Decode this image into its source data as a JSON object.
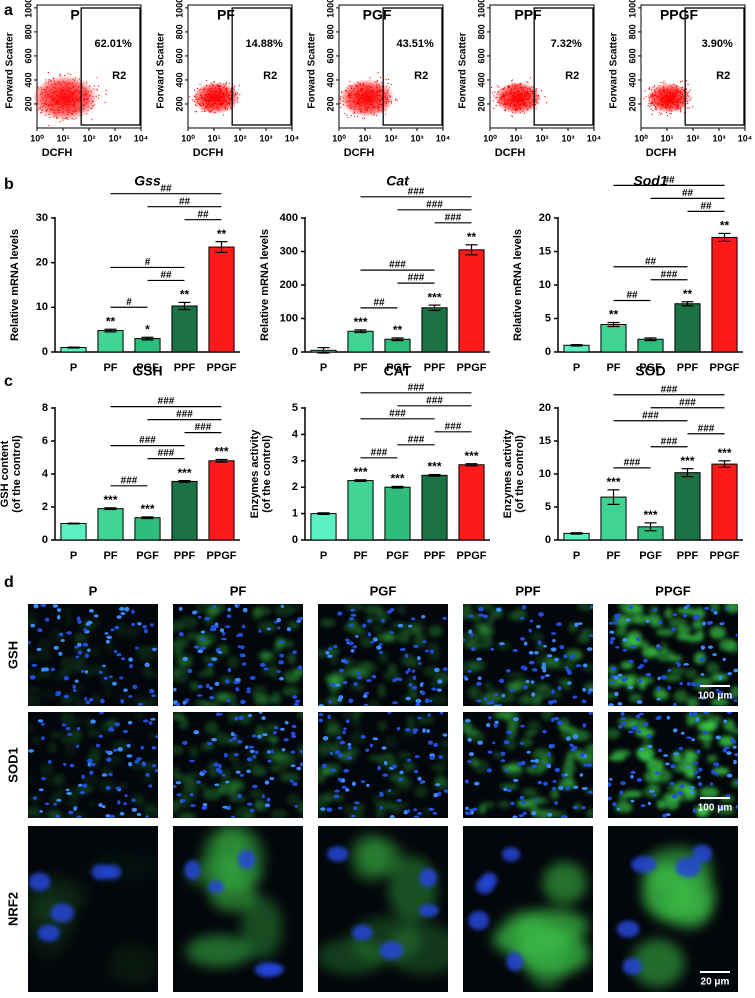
{
  "panel_labels": [
    "a",
    "b",
    "c",
    "d"
  ],
  "chart_data": [
    {
      "type": "flow",
      "title": "P",
      "gate_label": "R2",
      "gate_percent": "62.01%",
      "xlabel": "DCFH",
      "ylabel": "Forward Scatter",
      "xscale": "log",
      "color": "#ff0000",
      "xlim": [
        1,
        10000
      ],
      "xticks": [
        {
          "value": 1,
          "label": "10⁰"
        },
        {
          "value": 10,
          "label": "10¹"
        },
        {
          "value": 100,
          "label": "10²"
        },
        {
          "value": 1000,
          "label": "10³"
        },
        {
          "value": 10000,
          "label": "10⁴"
        }
      ],
      "ylim": [
        0,
        1024
      ],
      "yticks": [
        200,
        400,
        600,
        800,
        1000
      ]
    },
    {
      "type": "flow",
      "title": "PF",
      "gate_label": "R2",
      "gate_percent": "14.88%",
      "xlabel": "DCFH",
      "ylabel": "Forward Scatter",
      "xscale": "log",
      "color": "#ff0000",
      "xlim": [
        1,
        10000
      ],
      "xticks": [
        {
          "value": 1,
          "label": "10⁰"
        },
        {
          "value": 10,
          "label": "10¹"
        },
        {
          "value": 100,
          "label": "10²"
        },
        {
          "value": 1000,
          "label": "10³"
        },
        {
          "value": 10000,
          "label": "10⁴"
        }
      ],
      "ylim": [
        0,
        1024
      ],
      "yticks": [
        200,
        400,
        600,
        800,
        1000
      ]
    },
    {
      "type": "flow",
      "title": "PGF",
      "gate_label": "R2",
      "gate_percent": "43.51%",
      "xlabel": "DCFH",
      "ylabel": "Forward Scatter",
      "xscale": "log",
      "color": "#ff0000",
      "xlim": [
        1,
        10000
      ],
      "xticks": [
        {
          "value": 1,
          "label": "10⁰"
        },
        {
          "value": 10,
          "label": "10¹"
        },
        {
          "value": 100,
          "label": "10²"
        },
        {
          "value": 1000,
          "label": "10³"
        },
        {
          "value": 10000,
          "label": "10⁴"
        }
      ],
      "ylim": [
        0,
        1024
      ],
      "yticks": [
        200,
        400,
        600,
        800,
        1000
      ]
    },
    {
      "type": "flow",
      "title": "PPF",
      "gate_label": "R2",
      "gate_percent": "7.32%",
      "xlabel": "DCFH",
      "ylabel": "Forward Scatter",
      "xscale": "log",
      "color": "#ff0000",
      "xlim": [
        1,
        10000
      ],
      "xticks": [
        {
          "value": 1,
          "label": "10⁰"
        },
        {
          "value": 10,
          "label": "10¹"
        },
        {
          "value": 100,
          "label": "10²"
        },
        {
          "value": 1000,
          "label": "10³"
        },
        {
          "value": 10000,
          "label": "10⁴"
        }
      ],
      "ylim": [
        0,
        1024
      ],
      "yticks": [
        200,
        400,
        600,
        800,
        1000
      ]
    },
    {
      "type": "flow",
      "title": "PPGF",
      "gate_label": "R2",
      "gate_percent": "3.90%",
      "xlabel": "DCFH",
      "ylabel": "Forward Scatter",
      "xscale": "log",
      "color": "#ff0000",
      "xlim": [
        1,
        10000
      ],
      "xticks": [
        {
          "value": 1,
          "label": "10⁰"
        },
        {
          "value": 10,
          "label": "10¹"
        },
        {
          "value": 100,
          "label": "10²"
        },
        {
          "value": 1000,
          "label": "10³"
        },
        {
          "value": 10000,
          "label": "10⁴"
        }
      ],
      "ylim": [
        0,
        1024
      ],
      "yticks": [
        200,
        400,
        600,
        800,
        1000
      ]
    },
    {
      "type": "bar",
      "title": "Gss",
      "title_style": "italic",
      "ylabel": [
        "Relative mRNA levels"
      ],
      "categories": [
        "P",
        "PF",
        "PGF",
        "PPF",
        "PPGF"
      ],
      "colors": [
        "#5af2c2",
        "#3fd494",
        "#2fbd7c",
        "#1c7245",
        "#ff1a1a"
      ],
      "values": [
        1,
        4.8,
        3,
        10.3,
        23.5
      ],
      "errors": [
        0.1,
        0.3,
        0.3,
        0.8,
        1.2
      ],
      "annotations": [
        null,
        "**",
        "*",
        "**",
        "**"
      ],
      "brackets": [
        {
          "label": "#",
          "between": [
            "PF",
            "PGF"
          ]
        },
        {
          "label": "##",
          "between": [
            "PGF",
            "PPF"
          ]
        },
        {
          "label": "#",
          "between": [
            "PF",
            "PPF"
          ]
        },
        {
          "label": "##",
          "between": [
            "PPF",
            "PPGF"
          ]
        },
        {
          "label": "##",
          "between": [
            "PGF",
            "PPGF"
          ]
        },
        {
          "label": "##",
          "between": [
            "PF",
            "PPGF"
          ]
        }
      ],
      "ylim": [
        0,
        30
      ],
      "yticks": [
        0,
        10,
        20,
        30
      ]
    },
    {
      "type": "bar",
      "title": "Cat",
      "title_style": "italic",
      "ylabel": [
        "Relative mRNA levels"
      ],
      "categories": [
        "P",
        "PF",
        "PGF",
        "PPF",
        "PPGF"
      ],
      "colors": [
        "#5af2c2",
        "#3fd494",
        "#2fbd7c",
        "#1c7245",
        "#ff1a1a"
      ],
      "values": [
        5,
        62,
        38,
        132,
        305
      ],
      "errors": [
        8,
        4,
        4,
        8,
        15
      ],
      "annotations": [
        null,
        "***",
        "**",
        "***",
        "**"
      ],
      "brackets": [
        {
          "label": "##",
          "between": [
            "PF",
            "PGF"
          ]
        },
        {
          "label": "###",
          "between": [
            "PGF",
            "PPF"
          ]
        },
        {
          "label": "###",
          "between": [
            "PF",
            "PPF"
          ]
        },
        {
          "label": "###",
          "between": [
            "PPF",
            "PPGF"
          ]
        },
        {
          "label": "###",
          "between": [
            "PGF",
            "PPGF"
          ]
        },
        {
          "label": "###",
          "between": [
            "PF",
            "PPGF"
          ]
        }
      ],
      "ylim": [
        0,
        400
      ],
      "yticks": [
        0,
        100,
        200,
        300,
        400
      ]
    },
    {
      "type": "bar",
      "title": "Sod1",
      "title_style": "italic",
      "ylabel": [
        "Relative mRNA levels"
      ],
      "categories": [
        "P",
        "PF",
        "PGF",
        "PPF",
        "PPGF"
      ],
      "colors": [
        "#5af2c2",
        "#3fd494",
        "#2fbd7c",
        "#1c7245",
        "#ff1a1a"
      ],
      "values": [
        1,
        4.1,
        1.9,
        7.2,
        17.1
      ],
      "errors": [
        0.1,
        0.3,
        0.2,
        0.3,
        0.6
      ],
      "annotations": [
        null,
        "**",
        null,
        "**",
        "**"
      ],
      "brackets": [
        {
          "label": "##",
          "between": [
            "PF",
            "PGF"
          ]
        },
        {
          "label": "###",
          "between": [
            "PGF",
            "PPF"
          ]
        },
        {
          "label": "##",
          "between": [
            "PF",
            "PPF"
          ]
        },
        {
          "label": "##",
          "between": [
            "PPF",
            "PPGF"
          ]
        },
        {
          "label": "##",
          "between": [
            "PGF",
            "PPGF"
          ]
        },
        {
          "label": "##",
          "between": [
            "PF",
            "PPGF"
          ]
        }
      ],
      "ylim": [
        0,
        20
      ],
      "yticks": [
        0,
        5,
        10,
        15,
        20
      ]
    },
    {
      "type": "bar",
      "title": "GSH",
      "title_style": "normal",
      "ylabel": [
        "GSH content",
        "(of the control)"
      ],
      "categories": [
        "P",
        "PF",
        "PGF",
        "PPF",
        "PPGF"
      ],
      "colors": [
        "#5af2c2",
        "#3fd494",
        "#2fbd7c",
        "#1c7245",
        "#ff1a1a"
      ],
      "values": [
        1,
        1.9,
        1.35,
        3.55,
        4.8
      ],
      "errors": [
        0.02,
        0.05,
        0.05,
        0.05,
        0.08
      ],
      "annotations": [
        null,
        "***",
        "***",
        "***",
        "***"
      ],
      "brackets": [
        {
          "label": "###",
          "between": [
            "PF",
            "PGF"
          ]
        },
        {
          "label": "###",
          "between": [
            "PGF",
            "PPF"
          ]
        },
        {
          "label": "###",
          "between": [
            "PF",
            "PPF"
          ]
        },
        {
          "label": "###",
          "between": [
            "PPF",
            "PPGF"
          ]
        },
        {
          "label": "###",
          "between": [
            "PGF",
            "PPGF"
          ]
        },
        {
          "label": "###",
          "between": [
            "PF",
            "PPGF"
          ]
        }
      ],
      "ylim": [
        0,
        8
      ],
      "yticks": [
        0,
        2,
        4,
        6,
        8
      ]
    },
    {
      "type": "bar",
      "title": "CAT",
      "title_style": "normal",
      "ylabel": [
        "Enzymes activity",
        "(of the control)"
      ],
      "categories": [
        "P",
        "PF",
        "PGF",
        "PPF",
        "PPGF"
      ],
      "colors": [
        "#5af2c2",
        "#3fd494",
        "#2fbd7c",
        "#1c7245",
        "#ff1a1a"
      ],
      "values": [
        1,
        2.25,
        2.0,
        2.45,
        2.85
      ],
      "errors": [
        0.03,
        0.03,
        0.03,
        0.03,
        0.04
      ],
      "annotations": [
        null,
        "***",
        "***",
        "***",
        "***"
      ],
      "brackets": [
        {
          "label": "###",
          "between": [
            "PF",
            "PGF"
          ]
        },
        {
          "label": "###",
          "between": [
            "PGF",
            "PPF"
          ]
        },
        {
          "label": "###",
          "between": [
            "PPF",
            "PPGF"
          ]
        },
        {
          "label": "###",
          "between": [
            "PF",
            "PPF"
          ]
        },
        {
          "label": "###",
          "between": [
            "PGF",
            "PPGF"
          ]
        },
        {
          "label": "###",
          "between": [
            "PF",
            "PPGF"
          ]
        }
      ],
      "ylim": [
        0,
        5
      ],
      "yticks": [
        0,
        1,
        2,
        3,
        4,
        5
      ]
    },
    {
      "type": "bar",
      "title": "SOD",
      "title_style": "normal",
      "ylabel": [
        "Enzymes activity",
        "(of the control)"
      ],
      "categories": [
        "P",
        "PF",
        "PGF",
        "PPF",
        "PPGF"
      ],
      "colors": [
        "#5af2c2",
        "#3fd494",
        "#2fbd7c",
        "#1c7245",
        "#ff1a1a"
      ],
      "values": [
        1,
        6.5,
        2.0,
        10.2,
        11.5
      ],
      "errors": [
        0.1,
        1.1,
        0.6,
        0.6,
        0.5
      ],
      "annotations": [
        null,
        "***",
        "***",
        "***",
        "***"
      ],
      "brackets": [
        {
          "label": "###",
          "between": [
            "PF",
            "PGF"
          ]
        },
        {
          "label": "###",
          "between": [
            "PGF",
            "PPF"
          ]
        },
        {
          "label": "###",
          "between": [
            "PPF",
            "PPGF"
          ]
        },
        {
          "label": "###",
          "between": [
            "PF",
            "PPF"
          ]
        },
        {
          "label": "###",
          "between": [
            "PGF",
            "PPGF"
          ]
        },
        {
          "label": "###",
          "between": [
            "PF",
            "PPGF"
          ]
        }
      ],
      "ylim": [
        0,
        20
      ],
      "yticks": [
        0,
        5,
        10,
        15,
        20
      ]
    }
  ],
  "microscopy": {
    "columns": [
      "P",
      "PF",
      "PGF",
      "PPF",
      "PPGF"
    ],
    "rows": [
      {
        "label": "GSH",
        "scale_bar": "100 μm"
      },
      {
        "label": "SOD1",
        "scale_bar": "100 μm"
      },
      {
        "label": "NRF2",
        "scale_bar": "20 μm"
      }
    ]
  }
}
